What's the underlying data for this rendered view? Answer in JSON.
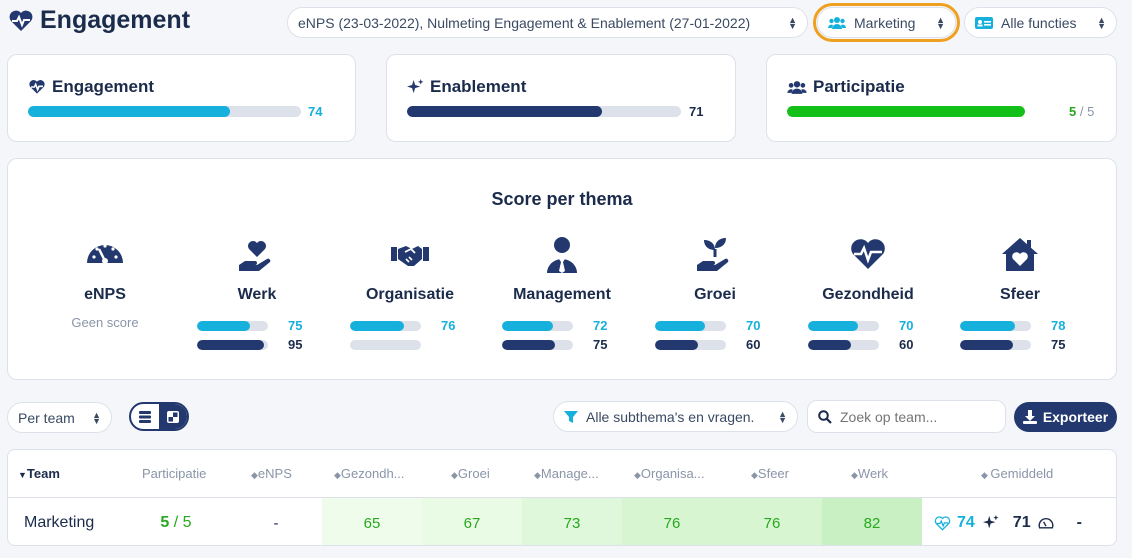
{
  "header": {
    "title": "Engagement",
    "survey_select": "eNPS (23-03-2022), Nulmeting Engagement & Enablement (27-01-2022)",
    "team_select": "Marketing",
    "function_select": "Alle functies"
  },
  "summary": {
    "engagement": {
      "label": "Engagement",
      "value": "74",
      "fraction": 0.74
    },
    "enablement": {
      "label": "Enablement",
      "value": "71",
      "fraction": 0.71
    },
    "participatie": {
      "label": "Participatie",
      "done": "5",
      "sep": " / ",
      "total": "5",
      "fraction": 1.0
    }
  },
  "themes": {
    "title": "Score per thema",
    "items": [
      {
        "name": "eNPS",
        "icon": "gauge-icon",
        "no_score": "Geen score"
      },
      {
        "name": "Werk",
        "icon": "hand-heart-icon",
        "v1": "75",
        "v2": "95",
        "f1": 0.75,
        "f2": 0.95
      },
      {
        "name": "Organisatie",
        "icon": "handshake-icon",
        "v1": "76",
        "v2": "",
        "f1": 0.76,
        "f2": 0
      },
      {
        "name": "Management",
        "icon": "user-tie-icon",
        "v1": "72",
        "v2": "75",
        "f1": 0.72,
        "f2": 0.75
      },
      {
        "name": "Groei",
        "icon": "seedling-icon",
        "v1": "70",
        "v2": "60",
        "f1": 0.7,
        "f2": 0.6
      },
      {
        "name": "Gezondheid",
        "icon": "heart-pulse-icon",
        "v1": "70",
        "v2": "60",
        "f1": 0.7,
        "f2": 0.6
      },
      {
        "name": "Sfeer",
        "icon": "house-heart-icon",
        "v1": "78",
        "v2": "75",
        "f1": 0.78,
        "f2": 0.75
      }
    ]
  },
  "toolbar": {
    "group_select": "Per team",
    "filter_select": "Alle subthema's en vragen.",
    "search_placeholder": "Zoek op team...",
    "export_label": "Exporteer"
  },
  "table": {
    "headers": [
      "Team",
      "Participatie",
      "eNPS",
      "Gezondh...",
      "Groei",
      "Manage...",
      "Organisa...",
      "Sfeer",
      "Werk",
      "Gemiddeld"
    ],
    "row": {
      "team": "Marketing",
      "participatie_done": "5",
      "participatie_sep": " / ",
      "participatie_total": "5",
      "enps": "-",
      "gezondheid": "65",
      "groei": "67",
      "management": "73",
      "organisatie": "76",
      "sfeer": "76",
      "werk": "82",
      "avg_engagement": "74",
      "avg_enablement": "71",
      "avg_enps": "-"
    }
  },
  "colors": {
    "accent": "#16b0dc",
    "navy": "#22386e",
    "green": "#12c018",
    "highlight": "#f0a020"
  }
}
